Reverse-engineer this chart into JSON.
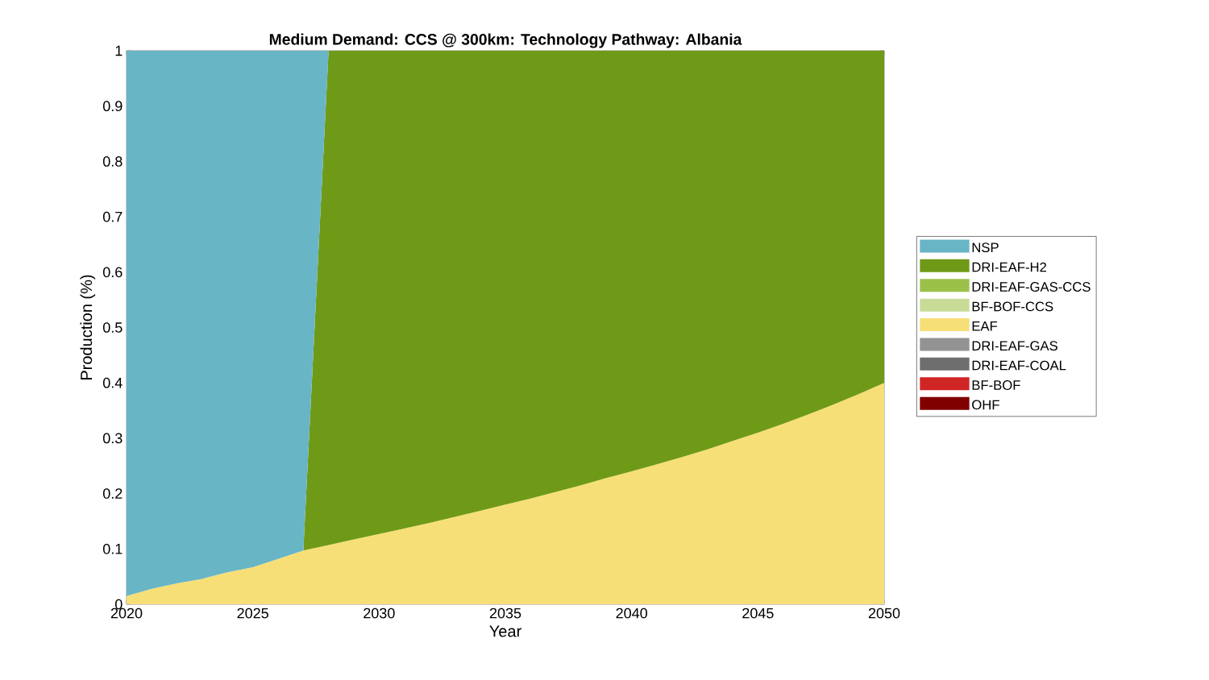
{
  "chart_data": {
    "type": "area",
    "title": "Medium Demand: CCS @ 300km: Technology Pathway: Albania",
    "xlabel": "Year",
    "ylabel": "Production (%)",
    "stacked": true,
    "legend": "right",
    "x": [
      2020,
      2021,
      2022,
      2023,
      2024,
      2025,
      2026,
      2027,
      2028,
      2029,
      2030,
      2031,
      2032,
      2033,
      2034,
      2035,
      2036,
      2037,
      2038,
      2039,
      2040,
      2041,
      2042,
      2043,
      2044,
      2045,
      2046,
      2047,
      2048,
      2049,
      2050
    ],
    "xlim": [
      2020,
      2050
    ],
    "xticks": [
      2020,
      2025,
      2030,
      2035,
      2040,
      2045,
      2050
    ],
    "ylim": [
      0,
      1
    ],
    "yticks": [
      0,
      0.1,
      0.2,
      0.3,
      0.4,
      0.5,
      0.6,
      0.7,
      0.8,
      0.9,
      1
    ],
    "series": [
      {
        "name": "OHF",
        "color": "#800000",
        "values": [
          null,
          null,
          null,
          null,
          null,
          null,
          null,
          null,
          null,
          null,
          null,
          null,
          null,
          null,
          null,
          null,
          null,
          null,
          null,
          null,
          null,
          null,
          null,
          null,
          null,
          null,
          null,
          null,
          null,
          null,
          null
        ]
      },
      {
        "name": "BF-BOF",
        "color": "#d02525",
        "values": [
          null,
          null,
          null,
          null,
          null,
          null,
          null,
          null,
          null,
          null,
          null,
          null,
          null,
          null,
          null,
          null,
          null,
          null,
          null,
          null,
          null,
          null,
          null,
          null,
          null,
          null,
          null,
          null,
          null,
          null,
          null
        ]
      },
      {
        "name": "DRI-EAF-COAL",
        "color": "#6e6e6e",
        "values": [
          null,
          null,
          null,
          null,
          null,
          null,
          null,
          null,
          null,
          null,
          null,
          null,
          null,
          null,
          null,
          null,
          null,
          null,
          null,
          null,
          null,
          null,
          null,
          null,
          null,
          null,
          null,
          null,
          null,
          null,
          null
        ]
      },
      {
        "name": "DRI-EAF-GAS",
        "color": "#939393",
        "values": [
          null,
          null,
          null,
          null,
          null,
          null,
          null,
          null,
          null,
          null,
          null,
          null,
          null,
          null,
          null,
          null,
          null,
          null,
          null,
          null,
          null,
          null,
          null,
          null,
          null,
          null,
          null,
          null,
          null,
          null,
          null
        ]
      },
      {
        "name": "EAF",
        "color": "#f7df78",
        "values": [
          0.015,
          0.028,
          0.038,
          0.046,
          0.058,
          0.067,
          0.082,
          0.097,
          0.107,
          0.117,
          0.127,
          0.137,
          0.147,
          0.158,
          0.169,
          0.18,
          0.191,
          0.203,
          0.215,
          0.228,
          0.24,
          0.253,
          0.266,
          0.28,
          0.295,
          0.31,
          0.326,
          0.343,
          0.361,
          0.38,
          0.4
        ]
      },
      {
        "name": "BF-BOF-CCS",
        "color": "#c8dc98",
        "values": [
          null,
          null,
          null,
          null,
          null,
          null,
          null,
          null,
          null,
          null,
          null,
          null,
          null,
          null,
          null,
          null,
          null,
          null,
          null,
          null,
          null,
          null,
          null,
          null,
          null,
          null,
          null,
          null,
          null,
          null,
          null
        ]
      },
      {
        "name": "DRI-EAF-GAS-CCS",
        "color": "#9cc14b",
        "values": [
          null,
          null,
          null,
          null,
          null,
          null,
          null,
          null,
          null,
          null,
          null,
          null,
          null,
          null,
          null,
          null,
          null,
          null,
          null,
          null,
          null,
          null,
          null,
          null,
          null,
          null,
          null,
          null,
          null,
          null,
          null
        ]
      },
      {
        "name": "DRI-EAF-H2",
        "color": "#6f9a17",
        "values": [
          null,
          null,
          null,
          null,
          null,
          null,
          null,
          0,
          0.893,
          0.883,
          0.873,
          0.863,
          0.853,
          0.842,
          0.831,
          0.82,
          0.809,
          0.797,
          0.785,
          0.772,
          0.76,
          0.747,
          0.734,
          0.72,
          0.705,
          0.69,
          0.674,
          0.657,
          0.639,
          0.62,
          0.6
        ]
      },
      {
        "name": "NSP",
        "color": "#68b5c6",
        "values": [
          0.985,
          0.972,
          0.962,
          0.954,
          0.942,
          0.933,
          0.918,
          0.903,
          0,
          null,
          null,
          null,
          null,
          null,
          null,
          null,
          null,
          null,
          null,
          null,
          null,
          null,
          null,
          null,
          null,
          null,
          null,
          null,
          null,
          null,
          null
        ]
      }
    ]
  }
}
